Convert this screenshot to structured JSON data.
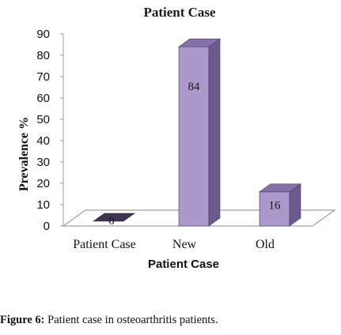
{
  "chart_data": {
    "type": "bar",
    "title": "Patient Case",
    "xlabel": "Patient Case",
    "ylabel": "Prevalence %",
    "categories": [
      "Patient Case",
      "New",
      "Old"
    ],
    "values": [
      0,
      84,
      16
    ],
    "data_labels": [
      "0",
      "84",
      "16"
    ],
    "ylim": [
      0,
      90
    ],
    "yticks": [
      0,
      10,
      20,
      30,
      40,
      50,
      60,
      70,
      80,
      90
    ],
    "grid": false,
    "legend": "none",
    "style": "3d",
    "colors": {
      "bar_front": "#a998c9",
      "bar_side": "#6c5a8e",
      "bar_top": "#8472a8"
    }
  },
  "caption": {
    "prefix": "Figure 6:",
    "text": " Patient case in osteoarthritis patients."
  }
}
